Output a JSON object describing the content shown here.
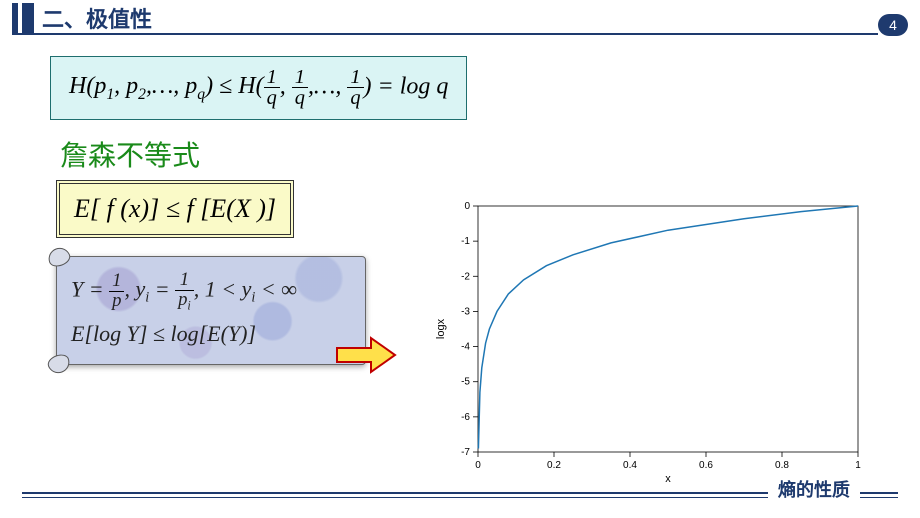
{
  "header": {
    "title": "二、极值性",
    "page_number": "4"
  },
  "formula_entropy": {
    "lhs": "H(p₁, p₂, …, p_q)",
    "op": " ≤ ",
    "mid_fn": "H",
    "mid_args_num": "1",
    "mid_args_den": "q",
    "eq": " = log ",
    "rhs": "q"
  },
  "jensen_title": "詹森不等式",
  "formula_jensen": "E[ f (x)] ≤ f [E(X )]",
  "formula_scroll": {
    "line1_Y": "Y",
    "line1_eq1": " = ",
    "line1_frac1_n": "1",
    "line1_frac1_d": "p",
    "line1_comma1": ", ",
    "line1_yi": "yᵢ",
    "line1_eq2": " = ",
    "line1_frac2_n": "1",
    "line1_frac2_d": "pᵢ",
    "line1_tail": ", 1 < yᵢ < ∞",
    "line2": "E[log Y] ≤ log[E(Y)]"
  },
  "chart": {
    "type": "line",
    "xlabel": "x",
    "ylabel": "logx",
    "xlim": [
      0,
      1
    ],
    "ylim": [
      -7,
      0
    ],
    "xticks": [
      0,
      0.2,
      0.4,
      0.6,
      0.8,
      1
    ],
    "yticks": [
      -7,
      -6,
      -5,
      -4,
      -3,
      -2,
      -1,
      0
    ],
    "line_color": "#1f77b4",
    "axis_color": "#000000",
    "box_color": "#000000",
    "label_fontsize": 11,
    "tick_fontsize": 10,
    "background_color": "#ffffff",
    "x_data": [
      0.001,
      0.005,
      0.01,
      0.02,
      0.03,
      0.05,
      0.08,
      0.12,
      0.18,
      0.25,
      0.35,
      0.5,
      0.7,
      0.85,
      1.0
    ],
    "y_data": [
      -6.9,
      -5.3,
      -4.6,
      -3.9,
      -3.5,
      -3.0,
      -2.5,
      -2.1,
      -1.7,
      -1.39,
      -1.05,
      -0.69,
      -0.36,
      -0.16,
      0.0
    ]
  },
  "arrow": {
    "fill": "#ffe04a",
    "stroke": "#c00000"
  },
  "footer": {
    "text": "熵的性质"
  }
}
